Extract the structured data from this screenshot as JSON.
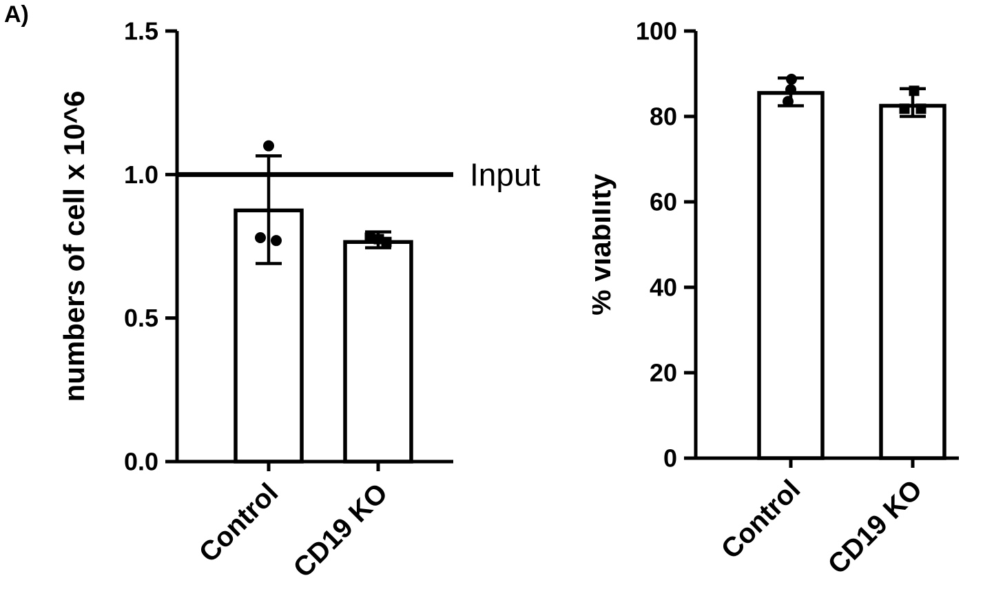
{
  "panel_label": "A)",
  "colors": {
    "foreground": "#000000",
    "bar_fill": "#ffffff",
    "background": "#ffffff"
  },
  "chart_data": [
    {
      "type": "bar",
      "title": "",
      "xlabel": "",
      "ylabel": "numbers of cell x 10^6",
      "ylim": [
        0,
        1.5
      ],
      "yticks": [
        0,
        0.5,
        1.0,
        1.5
      ],
      "ytick_labels": [
        "0.0",
        "0.5",
        "1.0",
        "1.5"
      ],
      "grid": false,
      "legend": "none",
      "categories": [
        "Control",
        "CD19 KO"
      ],
      "series": [
        {
          "name": "Control",
          "marker": "circle",
          "mean": 0.875,
          "error_low": 0.69,
          "error_high": 1.065,
          "points": [
            {
              "value": 1.1,
              "offset": 0
            },
            {
              "value": 0.78,
              "offset": -12
            },
            {
              "value": 0.77,
              "offset": 11
            }
          ]
        },
        {
          "name": "CD19 KO",
          "marker": "square",
          "mean": 0.765,
          "error_low": 0.745,
          "error_high": 0.8,
          "points": [
            {
              "value": 0.78,
              "offset": -12
            },
            {
              "value": 0.775,
              "offset": 1
            },
            {
              "value": 0.765,
              "offset": 12
            }
          ]
        }
      ],
      "annotations": [
        {
          "type": "hline",
          "value": 1.0,
          "label": "Input"
        }
      ]
    },
    {
      "type": "bar",
      "title": "",
      "xlabel": "",
      "ylabel": "% viability",
      "ylim": [
        0,
        100
      ],
      "yticks": [
        0,
        20,
        40,
        60,
        80,
        100
      ],
      "ytick_labels": [
        "0",
        "20",
        "40",
        "60",
        "80",
        "100"
      ],
      "grid": false,
      "legend": "none",
      "categories": [
        "Control",
        "CD19 KO"
      ],
      "series": [
        {
          "name": "Control",
          "marker": "circle",
          "mean": 85.5,
          "error_low": 82.5,
          "error_high": 89,
          "points": [
            {
              "value": 88.7,
              "offset": 1
            },
            {
              "value": 86.3,
              "offset": 0
            },
            {
              "value": 83.5,
              "offset": -4
            }
          ]
        },
        {
          "name": "CD19 KO",
          "marker": "square",
          "mean": 82.5,
          "error_low": 80,
          "error_high": 86.5,
          "points": [
            {
              "value": 86,
              "offset": 2
            },
            {
              "value": 81.8,
              "offset": -12
            },
            {
              "value": 81.8,
              "offset": 12
            }
          ]
        }
      ],
      "annotations": []
    }
  ]
}
